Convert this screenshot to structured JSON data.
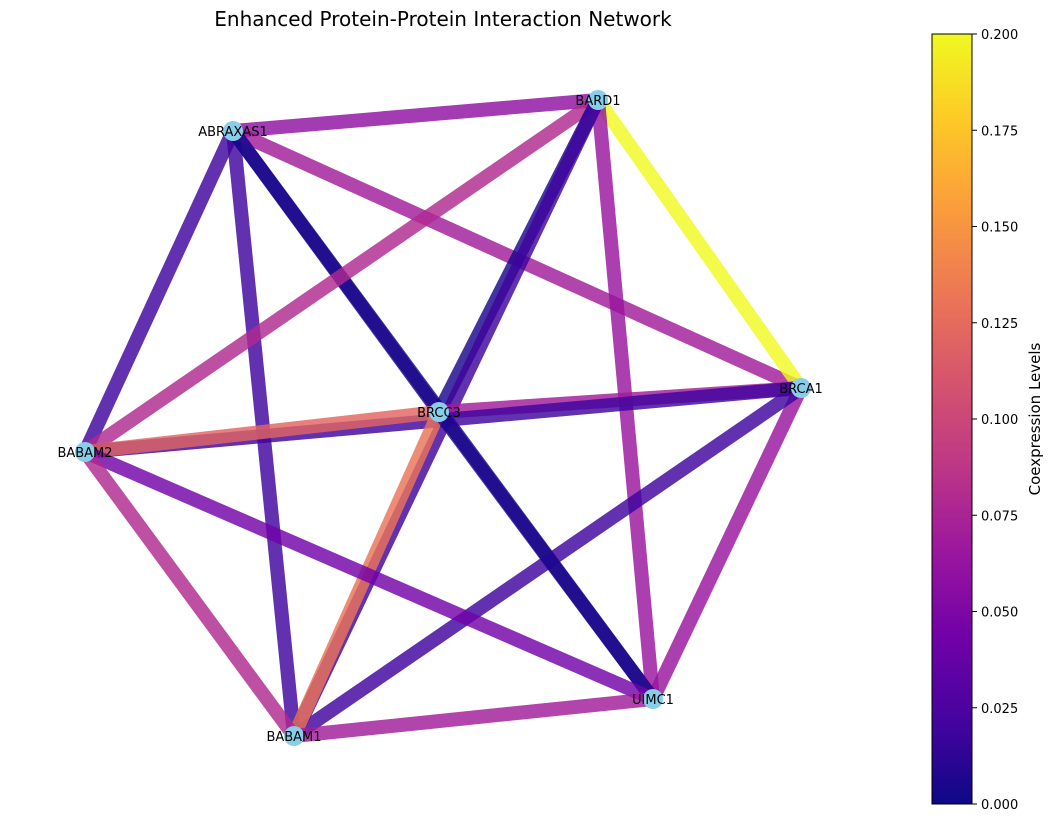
{
  "title": "Enhanced Protein-Protein Interaction Network",
  "chart_data": {
    "type": "network",
    "nodes": [
      "BARD1",
      "ABRAXAS1",
      "BRCA1",
      "BRCC3",
      "BABAM2",
      "UIMC1",
      "BABAM1"
    ],
    "edges": [
      {
        "source": "ABRAXAS1",
        "target": "BARD1",
        "value": 0.06
      },
      {
        "source": "ABRAXAS1",
        "target": "BABAM2",
        "value": 0.02
      },
      {
        "source": "ABRAXAS1",
        "target": "BABAM1",
        "value": 0.02
      },
      {
        "source": "ABRAXAS1",
        "target": "BRCC3",
        "value": 0.005
      },
      {
        "source": "ABRAXAS1",
        "target": "BRCA1",
        "value": 0.07
      },
      {
        "source": "ABRAXAS1",
        "target": "UIMC1",
        "value": 0.005
      },
      {
        "source": "BARD1",
        "target": "BRCA1",
        "value": 0.2
      },
      {
        "source": "BARD1",
        "target": "BABAM2",
        "value": 0.08
      },
      {
        "source": "BARD1",
        "target": "BRCC3",
        "value": 0.005
      },
      {
        "source": "BARD1",
        "target": "UIMC1",
        "value": 0.065
      },
      {
        "source": "BARD1",
        "target": "BABAM1",
        "value": 0.02
      },
      {
        "source": "BRCA1",
        "target": "BRCC3",
        "value": 0.07
      },
      {
        "source": "BRCA1",
        "target": "BABAM2",
        "value": 0.02
      },
      {
        "source": "BRCA1",
        "target": "UIMC1",
        "value": 0.065
      },
      {
        "source": "BRCA1",
        "target": "BABAM1",
        "value": 0.02
      },
      {
        "source": "BRCC3",
        "target": "BABAM2",
        "value": 0.12
      },
      {
        "source": "BRCC3",
        "target": "BABAM1",
        "value": 0.13
      },
      {
        "source": "BRCC3",
        "target": "UIMC1",
        "value": 0.005
      },
      {
        "source": "BABAM2",
        "target": "UIMC1",
        "value": 0.045
      },
      {
        "source": "BABAM2",
        "target": "BABAM1",
        "value": 0.08
      },
      {
        "source": "BABAM1",
        "target": "UIMC1",
        "value": 0.07
      }
    ],
    "colorbar": {
      "label": "Coexpression Levels",
      "min": 0.0,
      "max": 0.2,
      "ticks": [
        "0.000",
        "0.025",
        "0.050",
        "0.075",
        "0.100",
        "0.125",
        "0.150",
        "0.175",
        "0.200"
      ],
      "colormap": "plasma"
    }
  },
  "colors": {
    "node_fill": "#87ceeb",
    "plasma_stops": [
      "#0d0887",
      "#46039f",
      "#7201a8",
      "#9c179e",
      "#bd3786",
      "#d8576b",
      "#ed7953",
      "#fb9f3a",
      "#fdca26",
      "#f0f921"
    ]
  }
}
